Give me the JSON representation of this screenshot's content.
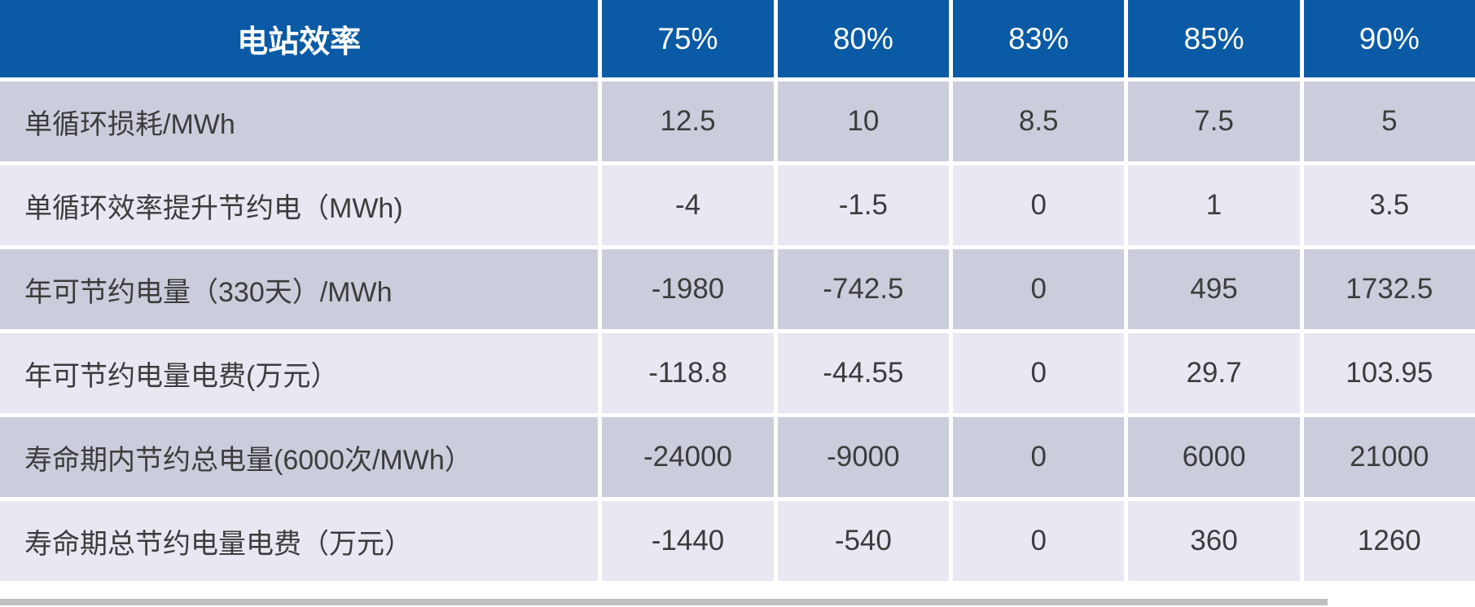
{
  "colors": {
    "accent": "#0A5AA5",
    "row_dark": "#CBCDDC",
    "row_light": "#E7E8F1",
    "text_dark": "#3C3C3C",
    "header_text": "#FFFFFF",
    "strip_gray": "#BFBFBF"
  },
  "table": {
    "header": {
      "label": "电站效率",
      "columns": [
        "75%",
        "80%",
        "83%",
        "85%",
        "90%"
      ]
    },
    "rows": [
      {
        "label": "单循环损耗/MWh",
        "values": [
          "12.5",
          "10",
          "8.5",
          "7.5",
          "5"
        ]
      },
      {
        "label": "单循环效率提升节约电（MWh)",
        "values": [
          "-4",
          "-1.5",
          "0",
          "1",
          "3.5"
        ]
      },
      {
        "label": "年可节约电量（330天）/MWh",
        "values": [
          "-1980",
          "-742.5",
          "0",
          "495",
          "1732.5"
        ]
      },
      {
        "label": "年可节约电量电费(万元）",
        "values": [
          "-118.8",
          "-44.55",
          "0",
          "29.7",
          "103.95"
        ]
      },
      {
        "label": "寿命期内节约总电量(6000次/MWh）",
        "values": [
          "-24000",
          "-9000",
          "0",
          "6000",
          "21000"
        ]
      },
      {
        "label": "寿命期总节约电量电费（万元）",
        "values": [
          "-1440",
          "-540",
          "0",
          "360",
          "1260"
        ]
      }
    ]
  }
}
